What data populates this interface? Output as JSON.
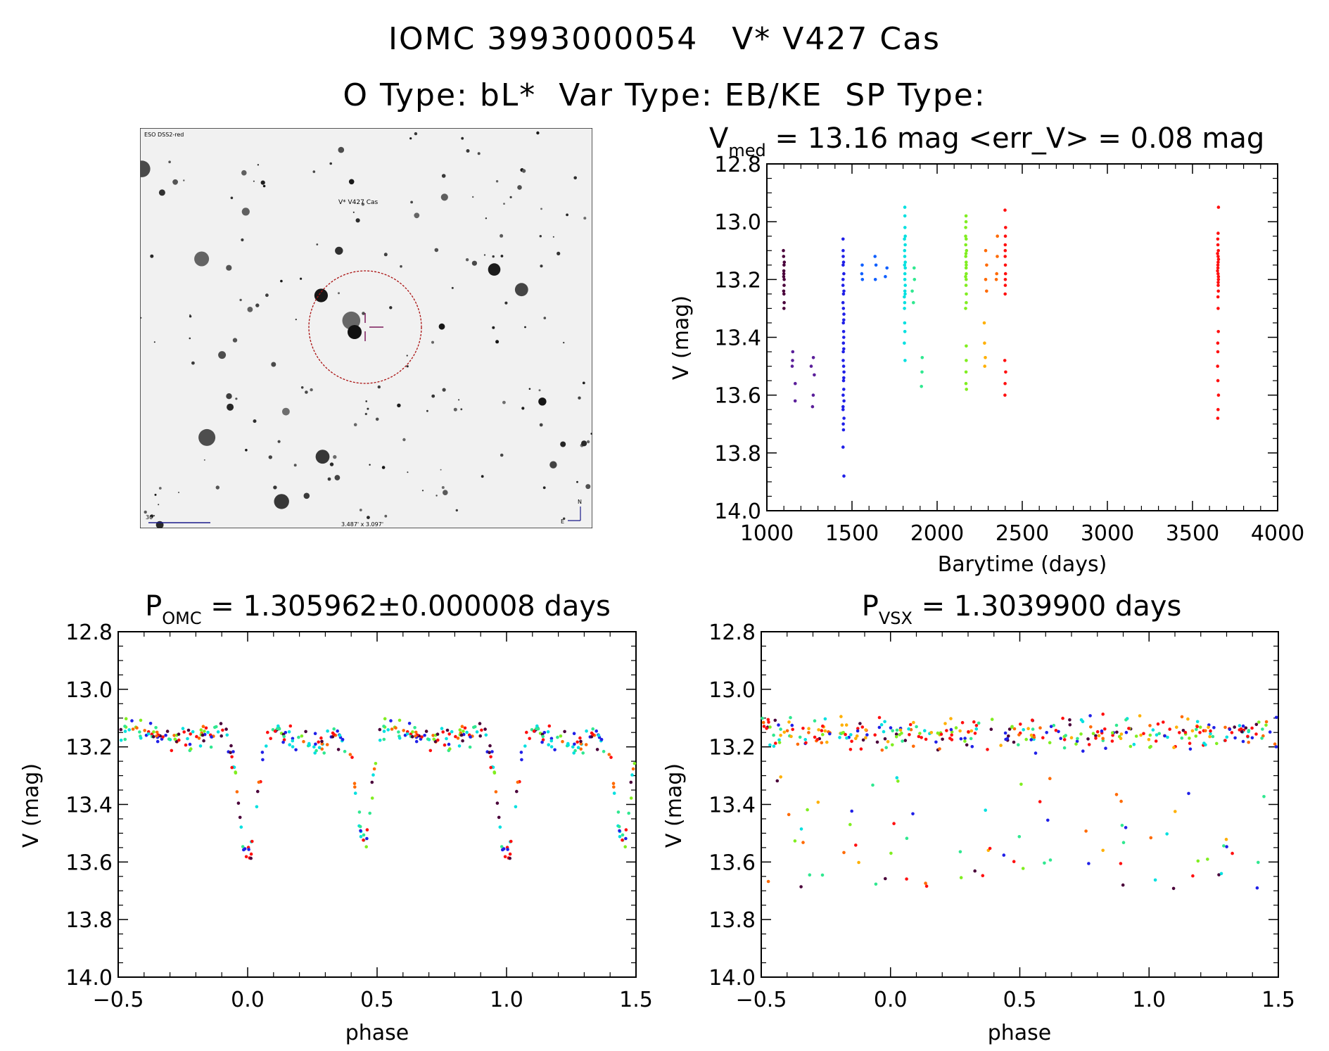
{
  "header": {
    "title": "IOMC 3993000054   V* V427 Cas",
    "subtitle": "O Type: bL*  Var Type: EB/KE  SP Type:"
  },
  "finder_chart": {
    "survey_label": "ESO DSS2-red",
    "target_label": "V* V427 Cas",
    "scale_label": "30\"",
    "fov_label": "3.487' x 3.097'",
    "north_label": "N",
    "east_label": "E",
    "marker_color": "#aa1111"
  },
  "colors": [
    "#4a003a",
    "#5b1f9a",
    "#2020e8",
    "#1060ff",
    "#00e0e0",
    "#30e890",
    "#80ee20",
    "#c8ee10",
    "#ffb000",
    "#ff6a00",
    "#ff1010",
    "#333333"
  ],
  "chart_data": [
    {
      "type": "scatter",
      "id": "lightcurve",
      "title_main": "V",
      "title_sub": "med",
      "title_rest": " = 13.16 mag <err_V> = 0.08 mag",
      "xlabel": "Barytime (days)",
      "ylabel": "V (mag)",
      "xlim": [
        1000,
        4000
      ],
      "ylim": [
        14.0,
        12.8
      ],
      "xticks": [
        1000,
        1500,
        2000,
        2500,
        3000,
        3500,
        4000
      ],
      "yticks": [
        12.8,
        13.0,
        13.2,
        13.4,
        13.6,
        13.8,
        14.0
      ],
      "ytick_labels": [
        "12.8",
        "13.0",
        "13.2",
        "13.4",
        "13.6",
        "13.8",
        "14.0"
      ],
      "groups": [
        {
          "x": 1100,
          "spread": 3,
          "color": 0,
          "values": [
            13.12,
            13.15,
            13.18,
            13.2,
            13.22,
            13.1,
            13.25,
            13.28,
            13.3,
            13.17,
            13.14,
            13.19,
            13.24
          ]
        },
        {
          "x": 1160,
          "spread": 12,
          "color": 1,
          "values": [
            13.45,
            13.5,
            13.56,
            13.48,
            13.62
          ]
        },
        {
          "x": 1270,
          "spread": 10,
          "color": 1,
          "values": [
            13.47,
            13.53,
            13.6,
            13.64,
            13.5
          ]
        },
        {
          "x": 1450,
          "spread": 3,
          "color": 2,
          "values": [
            13.06,
            13.1,
            13.15,
            13.2,
            13.25,
            13.3,
            13.35,
            13.4,
            13.45,
            13.5,
            13.55,
            13.6,
            13.65,
            13.7,
            13.72,
            13.78,
            13.88,
            13.12,
            13.18,
            13.22,
            13.28,
            13.32,
            13.38,
            13.42,
            13.48,
            13.52,
            13.58,
            13.62,
            13.68,
            13.14,
            13.24,
            13.34,
            13.44,
            13.54,
            13.64
          ]
        },
        {
          "x": 1560,
          "spread": 6,
          "color": 3,
          "values": [
            13.15,
            13.18,
            13.2
          ]
        },
        {
          "x": 1640,
          "spread": 6,
          "color": 3,
          "values": [
            13.12,
            13.15,
            13.2
          ]
        },
        {
          "x": 1700,
          "spread": 6,
          "color": 3,
          "values": [
            13.16,
            13.19
          ]
        },
        {
          "x": 1810,
          "spread": 3,
          "color": 4,
          "values": [
            12.95,
            12.98,
            13.02,
            13.05,
            13.08,
            13.1,
            13.12,
            13.15,
            13.18,
            13.2,
            13.22,
            13.25,
            13.28,
            13.3,
            13.35,
            13.38,
            13.42,
            13.48,
            13.06,
            13.14,
            13.16,
            13.24,
            13.26
          ]
        },
        {
          "x": 1860,
          "spread": 8,
          "color": 5,
          "values": [
            13.16,
            13.2,
            13.24,
            13.28
          ]
        },
        {
          "x": 1910,
          "spread": 8,
          "color": 5,
          "values": [
            13.47,
            13.52,
            13.57
          ]
        },
        {
          "x": 2170,
          "spread": 3,
          "color": 6,
          "values": [
            12.98,
            13.0,
            13.02,
            13.05,
            13.08,
            13.1,
            13.12,
            13.14,
            13.16,
            13.18,
            13.2,
            13.22,
            13.25,
            13.28,
            13.3,
            13.43,
            13.48,
            13.52,
            13.56,
            13.58,
            13.06,
            13.11,
            13.15,
            13.19
          ]
        },
        {
          "x": 2280,
          "spread": 5,
          "color": 8,
          "values": [
            13.35,
            13.42,
            13.47,
            13.5
          ]
        },
        {
          "x": 2290,
          "spread": 5,
          "color": 9,
          "values": [
            13.1,
            13.15,
            13.2,
            13.24
          ]
        },
        {
          "x": 2350,
          "spread": 5,
          "color": 9,
          "values": [
            13.05,
            13.12,
            13.18,
            13.2
          ]
        },
        {
          "x": 2400,
          "spread": 3,
          "color": 10,
          "values": [
            12.96,
            13.02,
            13.05,
            13.08,
            13.1,
            13.12,
            13.15,
            13.18,
            13.2,
            13.22,
            13.25,
            13.48,
            13.52,
            13.56,
            13.6
          ]
        },
        {
          "x": 3650,
          "spread": 3,
          "color": 10,
          "values": [
            12.95,
            13.04,
            13.06,
            13.08,
            13.1,
            13.12,
            13.14,
            13.16,
            13.18,
            13.2,
            13.22,
            13.24,
            13.26,
            13.3,
            13.38,
            13.42,
            13.45,
            13.5,
            13.55,
            13.6,
            13.65,
            13.68,
            13.11,
            13.13,
            13.15,
            13.17,
            13.19,
            13.21
          ]
        }
      ]
    },
    {
      "type": "scatter",
      "id": "phase_omc",
      "title_main": "P",
      "title_sub": "OMC",
      "title_rest": " = 1.305962±0.000008 days",
      "xlabel": "phase",
      "ylabel": "V (mag)",
      "xlim": [
        -0.5,
        1.5
      ],
      "ylim": [
        14.0,
        12.8
      ],
      "xticks": [
        -0.5,
        0.0,
        0.5,
        1.0,
        1.5
      ],
      "xtick_labels": [
        "−0.5",
        "0.0",
        "0.5",
        "1.0",
        "1.5"
      ],
      "yticks": [
        12.8,
        13.0,
        13.2,
        13.4,
        13.6,
        13.8,
        14.0
      ],
      "ytick_labels": [
        "12.8",
        "13.0",
        "13.2",
        "13.4",
        "13.6",
        "13.8",
        "14.0"
      ],
      "model": "eclipse_primary_at_zero",
      "min_secondary_phase": 0.45,
      "depth_primary": 13.62,
      "depth_secondary": 13.55,
      "baseline": 13.15,
      "points_per_cycle": 200
    },
    {
      "type": "scatter",
      "id": "phase_vsx",
      "title_main": "P",
      "title_sub": "VSX",
      "title_rest": " = 1.3039900 days",
      "xlabel": "phase",
      "ylabel": "V (mag)",
      "xlim": [
        -0.5,
        1.5
      ],
      "ylim": [
        14.0,
        12.8
      ],
      "xticks": [
        -0.5,
        0.0,
        0.5,
        1.0,
        1.5
      ],
      "xtick_labels": [
        "−0.5",
        "0.0",
        "0.5",
        "1.0",
        "1.5"
      ],
      "yticks": [
        12.8,
        13.0,
        13.2,
        13.4,
        13.6,
        13.8,
        14.0
      ],
      "ytick_labels": [
        "12.8",
        "13.0",
        "13.2",
        "13.4",
        "13.6",
        "13.8",
        "14.0"
      ],
      "model": "dephased",
      "baseline": 13.15,
      "points_per_cycle": 200
    }
  ]
}
